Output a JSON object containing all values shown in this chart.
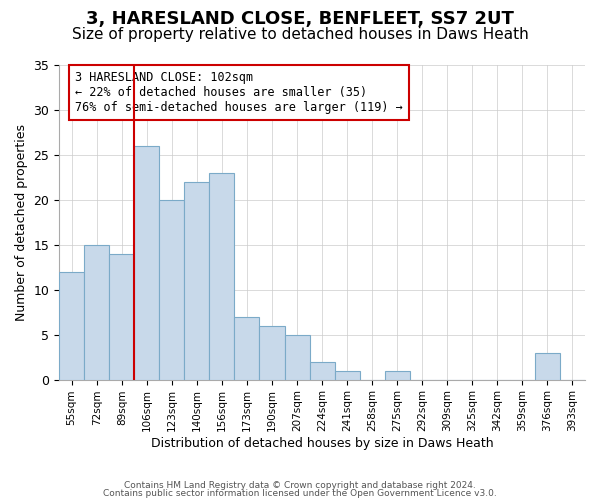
{
  "title": "3, HARESLAND CLOSE, BENFLEET, SS7 2UT",
  "subtitle": "Size of property relative to detached houses in Daws Heath",
  "xlabel": "Distribution of detached houses by size in Daws Heath",
  "ylabel": "Number of detached properties",
  "bar_color": "#c8d9ea",
  "bar_edge_color": "#7baac8",
  "bins": [
    "55sqm",
    "72sqm",
    "89sqm",
    "106sqm",
    "123sqm",
    "140sqm",
    "156sqm",
    "173sqm",
    "190sqm",
    "207sqm",
    "224sqm",
    "241sqm",
    "258sqm",
    "275sqm",
    "292sqm",
    "309sqm",
    "325sqm",
    "342sqm",
    "359sqm",
    "376sqm",
    "393sqm"
  ],
  "values": [
    12,
    15,
    14,
    26,
    20,
    22,
    23,
    7,
    6,
    5,
    2,
    1,
    0,
    1,
    0,
    0,
    0,
    0,
    0,
    3,
    0
  ],
  "ylim": [
    0,
    35
  ],
  "yticks": [
    0,
    5,
    10,
    15,
    20,
    25,
    30,
    35
  ],
  "vline_pos": 2.5,
  "vline_color": "#cc0000",
  "annotation_text": "3 HARESLAND CLOSE: 102sqm\n← 22% of detached houses are smaller (35)\n76% of semi-detached houses are larger (119) →",
  "annotation_box_color": "#ffffff",
  "annotation_box_edge": "#cc0000",
  "footer1": "Contains HM Land Registry data © Crown copyright and database right 2024.",
  "footer2": "Contains public sector information licensed under the Open Government Licence v3.0.",
  "background_color": "#ffffff",
  "title_fontsize": 13,
  "subtitle_fontsize": 11
}
